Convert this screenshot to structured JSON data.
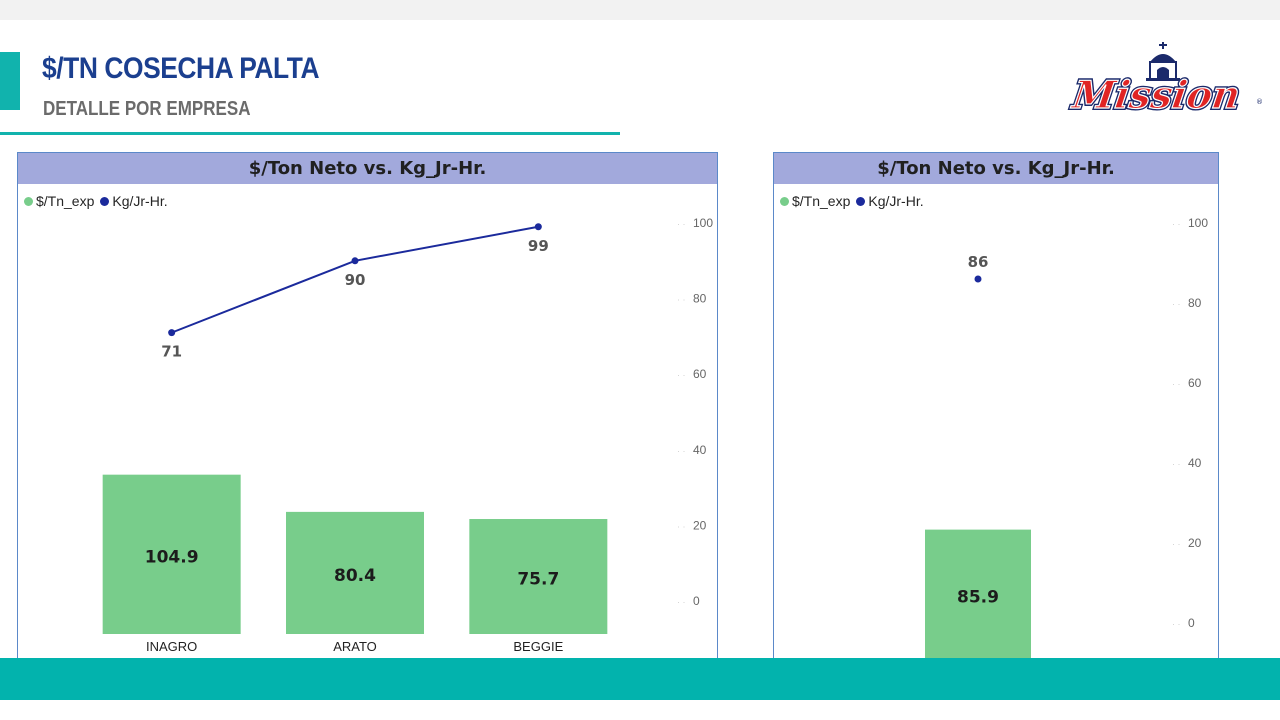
{
  "header": {
    "title": "$/TN COSECHA PALTA",
    "subtitle": "DETALLE POR EMPRESA",
    "logo_text": "Mission"
  },
  "colors": {
    "accent": "#11b3ad",
    "title": "#1b3f8f",
    "panel_header_bg": "#a2a9dc",
    "bar": "#78cd8b",
    "line": "#1b2a9c"
  },
  "charts": [
    {
      "title": "$/Ton Neto vs. Kg_Jr-Hr.",
      "legend": [
        {
          "label": "$/Tn_exp",
          "color": "#78cd8b"
        },
        {
          "label": "Kg/Jr-Hr.",
          "color": "#1b2a9c"
        }
      ],
      "y_ticks": [
        "100",
        "80",
        "60",
        "40",
        "20",
        "0"
      ]
    },
    {
      "title": "$/Ton Neto vs. Kg_Jr-Hr.",
      "legend": [
        {
          "label": "$/Tn_exp",
          "color": "#78cd8b"
        },
        {
          "label": "Kg/Jr-Hr.",
          "color": "#1b2a9c"
        }
      ],
      "y_ticks": [
        "100",
        "80",
        "60",
        "40",
        "20",
        "0"
      ]
    }
  ],
  "chart_data": [
    {
      "type": "bar",
      "title": "$/Ton Neto vs. Kg_Jr-Hr.",
      "categories": [
        "INAGRO",
        "ARATO",
        "BEGGIE"
      ],
      "series": [
        {
          "name": "$/Tn_exp",
          "type": "bar",
          "values": [
            104.9,
            80.4,
            75.7
          ],
          "axis": "left"
        },
        {
          "name": "Kg/Jr-Hr.",
          "type": "line",
          "values": [
            71,
            90,
            99
          ],
          "axis": "right"
        }
      ],
      "y_right_ticks": [
        0,
        20,
        40,
        60,
        80,
        100
      ],
      "y_right_lim": [
        0,
        100
      ],
      "y_left_lim": [
        0,
        185
      ],
      "legend_position": "top-left",
      "grid": false
    },
    {
      "type": "bar",
      "title": "$/Ton Neto vs. Kg_Jr-Hr.",
      "categories": [
        ""
      ],
      "series": [
        {
          "name": "$/Tn_exp",
          "type": "bar",
          "values": [
            85.9
          ],
          "axis": "left"
        },
        {
          "name": "Kg/Jr-Hr.",
          "type": "line",
          "values": [
            86
          ],
          "axis": "right"
        }
      ],
      "y_right_ticks": [
        0,
        20,
        40,
        60,
        80,
        100
      ],
      "y_right_lim": [
        0,
        100
      ],
      "y_left_lim": [
        0,
        160
      ],
      "legend_position": "top-left",
      "grid": false
    }
  ]
}
